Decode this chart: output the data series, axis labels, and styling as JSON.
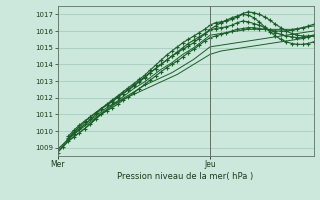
{
  "xlabel": "Pression niveau de la mer( hPa )",
  "bg_color": "#cce8dc",
  "grid_color": "#a0c8b4",
  "line_color": "#1a5e28",
  "ylim": [
    1008.5,
    1017.5
  ],
  "xlim": [
    0,
    47
  ],
  "yticks": [
    1009,
    1010,
    1011,
    1012,
    1013,
    1014,
    1015,
    1016,
    1017
  ],
  "xtick_labels": [
    "Mer",
    "Jeu"
  ],
  "xtick_positions": [
    0,
    28
  ],
  "vline_x": 28,
  "series": [
    {
      "x": [
        0,
        1,
        2,
        3,
        4,
        5,
        6,
        7,
        8,
        9,
        10,
        11,
        12,
        13,
        14,
        15,
        16,
        17,
        18,
        19,
        20,
        21,
        22,
        23,
        24,
        25,
        26,
        27,
        28,
        29,
        30,
        31,
        32,
        33,
        34,
        35,
        36,
        37,
        38,
        39,
        40,
        41,
        42,
        43,
        44,
        45,
        46,
        47
      ],
      "y": [
        1008.8,
        1009.1,
        1009.4,
        1009.65,
        1009.9,
        1010.15,
        1010.4,
        1010.7,
        1011.0,
        1011.25,
        1011.5,
        1011.7,
        1011.9,
        1012.05,
        1012.2,
        1012.35,
        1012.5,
        1012.65,
        1012.8,
        1012.95,
        1013.1,
        1013.25,
        1013.4,
        1013.6,
        1013.8,
        1014.0,
        1014.2,
        1014.4,
        1014.6,
        1014.7,
        1014.8,
        1014.85,
        1014.9,
        1014.95,
        1015.0,
        1015.05,
        1015.1,
        1015.15,
        1015.2,
        1015.25,
        1015.3,
        1015.35,
        1015.4,
        1015.45,
        1015.5,
        1015.55,
        1015.65,
        1015.75
      ],
      "marker": false,
      "lw": 0.7
    },
    {
      "x": [
        0,
        1,
        2,
        3,
        4,
        5,
        6,
        7,
        8,
        9,
        10,
        11,
        12,
        13,
        14,
        15,
        16,
        17,
        18,
        19,
        20,
        21,
        22,
        23,
        24,
        25,
        26,
        27,
        28,
        29,
        30,
        31,
        32,
        33,
        34,
        35,
        36,
        37,
        38,
        39,
        40,
        41,
        42,
        43,
        44,
        45,
        46,
        47
      ],
      "y": [
        1008.9,
        1009.2,
        1009.5,
        1009.8,
        1010.05,
        1010.3,
        1010.55,
        1010.8,
        1011.05,
        1011.3,
        1011.55,
        1011.75,
        1011.95,
        1012.15,
        1012.35,
        1012.55,
        1012.75,
        1012.9,
        1013.05,
        1013.2,
        1013.35,
        1013.5,
        1013.7,
        1013.9,
        1014.1,
        1014.3,
        1014.55,
        1014.8,
        1015.05,
        1015.1,
        1015.15,
        1015.2,
        1015.25,
        1015.3,
        1015.35,
        1015.4,
        1015.45,
        1015.5,
        1015.55,
        1015.6,
        1015.65,
        1015.7,
        1015.75,
        1015.8,
        1015.85,
        1015.9,
        1015.95,
        1016.0
      ],
      "marker": false,
      "lw": 0.7
    },
    {
      "x": [
        0,
        1,
        2,
        3,
        4,
        5,
        6,
        7,
        8,
        9,
        10,
        11,
        12,
        13,
        14,
        15,
        16,
        17,
        18,
        19,
        20,
        21,
        22,
        23,
        24,
        25,
        26,
        27,
        28,
        29,
        30,
        31,
        32,
        33,
        34,
        35,
        36,
        37,
        38,
        39,
        40,
        41,
        42,
        43,
        44,
        45,
        46,
        47
      ],
      "y": [
        1008.9,
        1009.2,
        1009.55,
        1009.9,
        1010.15,
        1010.4,
        1010.65,
        1010.9,
        1011.15,
        1011.4,
        1011.6,
        1011.8,
        1012.05,
        1012.3,
        1012.55,
        1012.75,
        1012.95,
        1013.2,
        1013.45,
        1013.7,
        1013.9,
        1014.1,
        1014.35,
        1014.6,
        1014.8,
        1015.0,
        1015.25,
        1015.5,
        1015.75,
        1015.8,
        1015.85,
        1015.9,
        1015.95,
        1016.0,
        1016.05,
        1016.1,
        1016.1,
        1016.1,
        1016.1,
        1016.1,
        1016.1,
        1016.1,
        1016.1,
        1016.1,
        1016.15,
        1016.2,
        1016.25,
        1016.3
      ],
      "marker": false,
      "lw": 0.7
    },
    {
      "x": [
        2,
        3,
        4,
        5,
        6,
        7,
        8,
        9,
        10,
        11,
        12,
        13,
        14,
        15,
        16,
        17,
        18,
        19,
        20,
        21,
        22,
        23,
        24,
        25,
        26,
        27,
        28,
        29,
        30,
        31,
        32,
        33,
        34,
        35,
        36,
        37,
        38,
        39,
        40,
        41,
        42,
        43,
        44,
        45,
        46,
        47
      ],
      "y": [
        1009.5,
        1009.8,
        1010.1,
        1010.4,
        1010.7,
        1011.0,
        1011.3,
        1011.55,
        1011.8,
        1012.05,
        1012.25,
        1012.45,
        1012.7,
        1012.95,
        1013.2,
        1013.5,
        1013.75,
        1014.0,
        1014.25,
        1014.5,
        1014.7,
        1014.9,
        1015.1,
        1015.3,
        1015.55,
        1015.8,
        1016.05,
        1016.15,
        1016.2,
        1016.25,
        1016.35,
        1016.5,
        1016.6,
        1016.55,
        1016.45,
        1016.35,
        1016.2,
        1016.05,
        1015.9,
        1015.8,
        1015.7,
        1015.65,
        1015.6,
        1015.6,
        1015.65,
        1015.7
      ],
      "marker": true,
      "lw": 0.8
    },
    {
      "x": [
        2,
        3,
        4,
        5,
        6,
        7,
        8,
        9,
        10,
        11,
        12,
        13,
        14,
        15,
        16,
        17,
        18,
        19,
        20,
        21,
        22,
        23,
        24,
        25,
        26,
        27,
        28,
        29,
        30,
        31,
        32,
        33,
        34,
        35,
        36,
        37,
        38,
        39,
        40,
        41,
        42,
        43,
        44,
        45,
        46,
        47
      ],
      "y": [
        1009.6,
        1009.95,
        1010.25,
        1010.55,
        1010.85,
        1011.1,
        1011.35,
        1011.6,
        1011.85,
        1012.1,
        1012.35,
        1012.6,
        1012.85,
        1013.1,
        1013.35,
        1013.65,
        1013.95,
        1014.25,
        1014.55,
        1014.8,
        1015.05,
        1015.3,
        1015.5,
        1015.7,
        1015.9,
        1016.1,
        1016.35,
        1016.5,
        1016.55,
        1016.6,
        1016.7,
        1016.85,
        1017.0,
        1016.95,
        1016.8,
        1016.55,
        1016.25,
        1015.95,
        1015.7,
        1015.5,
        1015.35,
        1015.25,
        1015.2,
        1015.2,
        1015.25,
        1015.35
      ],
      "marker": true,
      "lw": 0.8
    },
    {
      "x": [
        0,
        1,
        2,
        3,
        4,
        5,
        6,
        7,
        8,
        9,
        10,
        11,
        12,
        13,
        14,
        15,
        16,
        17,
        18,
        19,
        20,
        21,
        22,
        23,
        24,
        25,
        26,
        27,
        28,
        29,
        30,
        31,
        32,
        33,
        34,
        35,
        36,
        37,
        38,
        39,
        40,
        41,
        42,
        43,
        44,
        45,
        46,
        47
      ],
      "y": [
        1008.7,
        1009.05,
        1009.4,
        1009.65,
        1009.9,
        1010.15,
        1010.45,
        1010.75,
        1011.0,
        1011.2,
        1011.4,
        1011.6,
        1011.85,
        1012.05,
        1012.3,
        1012.55,
        1012.8,
        1013.05,
        1013.3,
        1013.55,
        1013.8,
        1014.0,
        1014.2,
        1014.45,
        1014.7,
        1014.9,
        1015.15,
        1015.4,
        1015.6,
        1015.7,
        1015.8,
        1015.9,
        1016.0,
        1016.1,
        1016.15,
        1016.2,
        1016.2,
        1016.15,
        1016.1,
        1016.05,
        1016.0,
        1016.0,
        1016.0,
        1016.05,
        1016.1,
        1016.2,
        1016.3,
        1016.4
      ],
      "marker": true,
      "lw": 0.8
    },
    {
      "x": [
        2,
        3,
        4,
        5,
        6,
        7,
        8,
        9,
        10,
        11,
        12,
        13,
        14,
        15,
        16,
        17,
        18,
        19,
        20,
        21,
        22,
        23,
        24,
        25,
        26,
        27,
        28,
        29,
        30,
        31,
        32,
        33,
        34,
        35,
        36,
        37,
        38,
        39,
        40,
        41,
        42,
        43,
        44,
        45,
        46,
        47
      ],
      "y": [
        1009.7,
        1010.05,
        1010.35,
        1010.6,
        1010.85,
        1011.1,
        1011.35,
        1011.55,
        1011.75,
        1012.0,
        1012.25,
        1012.5,
        1012.75,
        1013.0,
        1013.25,
        1013.5,
        1013.75,
        1014.0,
        1014.25,
        1014.5,
        1014.75,
        1015.0,
        1015.25,
        1015.45,
        1015.65,
        1015.85,
        1016.1,
        1016.3,
        1016.5,
        1016.65,
        1016.8,
        1016.9,
        1017.05,
        1017.15,
        1017.1,
        1017.0,
        1016.85,
        1016.65,
        1016.4,
        1016.2,
        1016.0,
        1015.85,
        1015.75,
        1015.7,
        1015.7,
        1015.75
      ],
      "marker": true,
      "lw": 0.8
    }
  ]
}
